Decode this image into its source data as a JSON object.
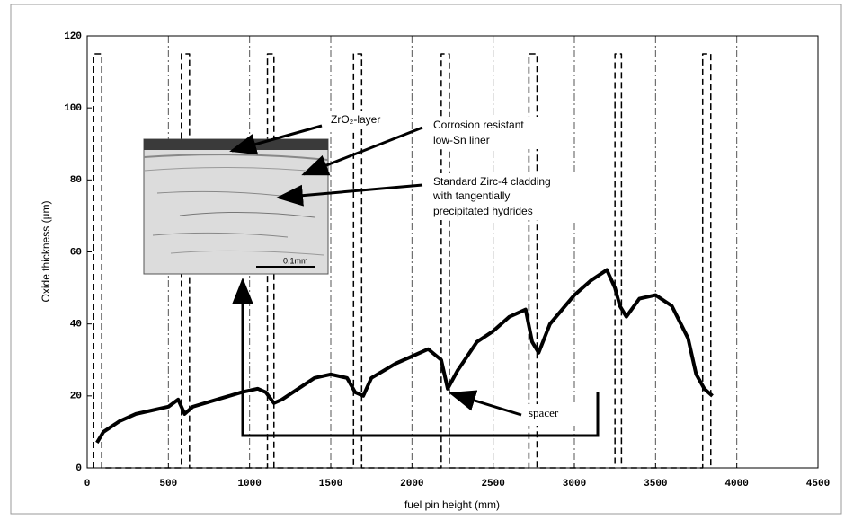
{
  "chart_data": {
    "type": "line",
    "xlabel": "fuel pin height (mm)",
    "ylabel": "Oxide thickness (µm)",
    "xlim": [
      0,
      4500
    ],
    "xticks": [
      0,
      500,
      1000,
      1500,
      2000,
      2500,
      3000,
      3500,
      4000,
      4500
    ],
    "ylim": [
      0,
      120
    ],
    "yticks": [
      0,
      20,
      40,
      60,
      80,
      100,
      120
    ],
    "grid": true,
    "series": [
      {
        "color": "#000000",
        "style": "solid",
        "x": [
          60,
          100,
          200,
          300,
          400,
          500,
          560,
          600,
          650,
          800,
          950,
          1050,
          1100,
          1150,
          1200,
          1300,
          1400,
          1500,
          1600,
          1650,
          1700,
          1750,
          1900,
          2000,
          2100,
          2180,
          2220,
          2280,
          2400,
          2500,
          2600,
          2700,
          2740,
          2780,
          2850,
          3000,
          3100,
          3200,
          3250,
          3280,
          3320,
          3400,
          3500,
          3600,
          3700,
          3750,
          3800,
          3850
        ],
        "values": [
          7,
          10,
          13,
          15,
          16,
          17,
          19,
          15,
          17,
          19,
          21,
          22,
          21,
          18,
          19,
          22,
          25,
          26,
          25,
          21,
          20,
          25,
          29,
          31,
          33,
          30,
          22,
          27,
          35,
          38,
          42,
          44,
          35,
          32,
          40,
          48,
          52,
          55,
          50,
          45,
          42,
          47,
          48,
          45,
          36,
          26,
          22,
          20
        ]
      },
      {
        "color": "#000000",
        "style": "dashed",
        "x": [
          40,
          40,
          90,
          90,
          580,
          580,
          630,
          630,
          1110,
          1110,
          1150,
          1150,
          1640,
          1640,
          1690,
          1690,
          2180,
          2180,
          2230,
          2230,
          2720,
          2720,
          2770,
          2770,
          3250,
          3250,
          3290,
          3290,
          3790,
          3790,
          3840,
          3840
        ],
        "values": [
          0,
          115,
          115,
          0,
          0,
          115,
          115,
          0,
          0,
          115,
          115,
          0,
          0,
          115,
          115,
          0,
          0,
          115,
          115,
          0,
          0,
          115,
          115,
          0,
          0,
          115,
          115,
          0,
          0,
          115,
          115,
          0
        ]
      }
    ],
    "annotations": {
      "oxide": "ZrO₂-layer",
      "liner": [
        "Corrosion resistant",
        "low-Sn liner"
      ],
      "cladding": [
        "Standard Zirc-4 cladding",
        "with tangentially",
        "precipitated hydrides"
      ],
      "spacer": "spacer",
      "scale": "0.1mm"
    }
  }
}
